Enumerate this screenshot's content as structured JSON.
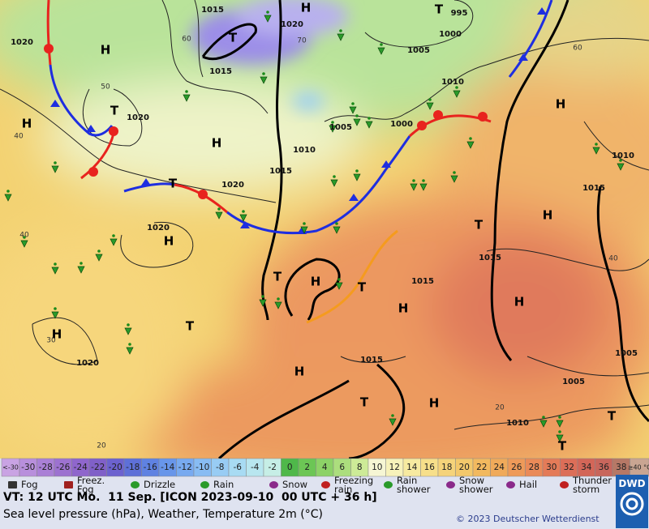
{
  "map": {
    "isobar_labels": [
      "1015",
      "1020",
      "1015",
      "995",
      "1000",
      "1005",
      "1010",
      "1020",
      "1020",
      "1005",
      "1000",
      "1010",
      "1015",
      "1020",
      "1020",
      "1015",
      "1015",
      "1015",
      "1020",
      "1010",
      "1015",
      "1005",
      "1005",
      "1010"
    ],
    "temperature_labels": [
      "60",
      "70",
      "60",
      "50",
      "40",
      "40",
      "40",
      "30",
      "20",
      "20"
    ],
    "centres": [
      "H",
      "H",
      "T",
      "T",
      "H",
      "T",
      "H",
      "H",
      "T",
      "H",
      "H",
      "T",
      "T",
      "H",
      "T",
      "H",
      "H",
      "H",
      "T",
      "H",
      "T",
      "H",
      "T",
      "T"
    ]
  },
  "scale": {
    "low": "<-30",
    "low_color": "#c9a3e3",
    "values": [
      -30,
      -28,
      -26,
      -24,
      -22,
      -20,
      -18,
      -16,
      -14,
      -12,
      -10,
      -8,
      -6,
      -4,
      -2,
      0,
      2,
      4,
      6,
      8,
      10,
      12,
      14,
      16,
      18,
      20,
      22,
      24,
      26,
      28,
      30,
      32,
      34,
      36,
      38
    ],
    "colors": [
      "#b88fdc",
      "#aa80d6",
      "#9d72d0",
      "#8f66cc",
      "#8060c8",
      "#6c62cf",
      "#5e70d8",
      "#5f82e2",
      "#6896ea",
      "#78aaf0",
      "#88bcf3",
      "#98ccf4",
      "#a8dbf3",
      "#b8e6ef",
      "#c6eee6",
      "#4fb84a",
      "#6cc655",
      "#8dd267",
      "#acde7d",
      "#cdeb97",
      "#f6f6d4",
      "#f7f2ba",
      "#f7eaa0",
      "#f7df8a",
      "#f5d37a",
      "#f3c86b",
      "#f2b95f",
      "#f0aa5a",
      "#ee9a59",
      "#ea8a58",
      "#e47b58",
      "#dc6e58",
      "#d36658",
      "#c8665c",
      "#b67866"
    ],
    "high": "≥40 °C",
    "high_color": "#c9a592"
  },
  "legend": [
    "Fog",
    "Freez. Fog",
    "Drizzle",
    "Rain",
    "Snow",
    "Freezing rain",
    "Rain shower",
    "Snow shower",
    "Hail",
    "Thunder storm"
  ],
  "footer": {
    "valid_time": "VT: 12 UTC Mo.  11 Sep. [ICON 2023-09-10  00 UTC + 36 h]",
    "description": "Sea level pressure (hPa), Weather, Temperature 2m (°C)",
    "copyright": "© 2023 Deutscher Wetterdienst",
    "logo": "DWD"
  }
}
